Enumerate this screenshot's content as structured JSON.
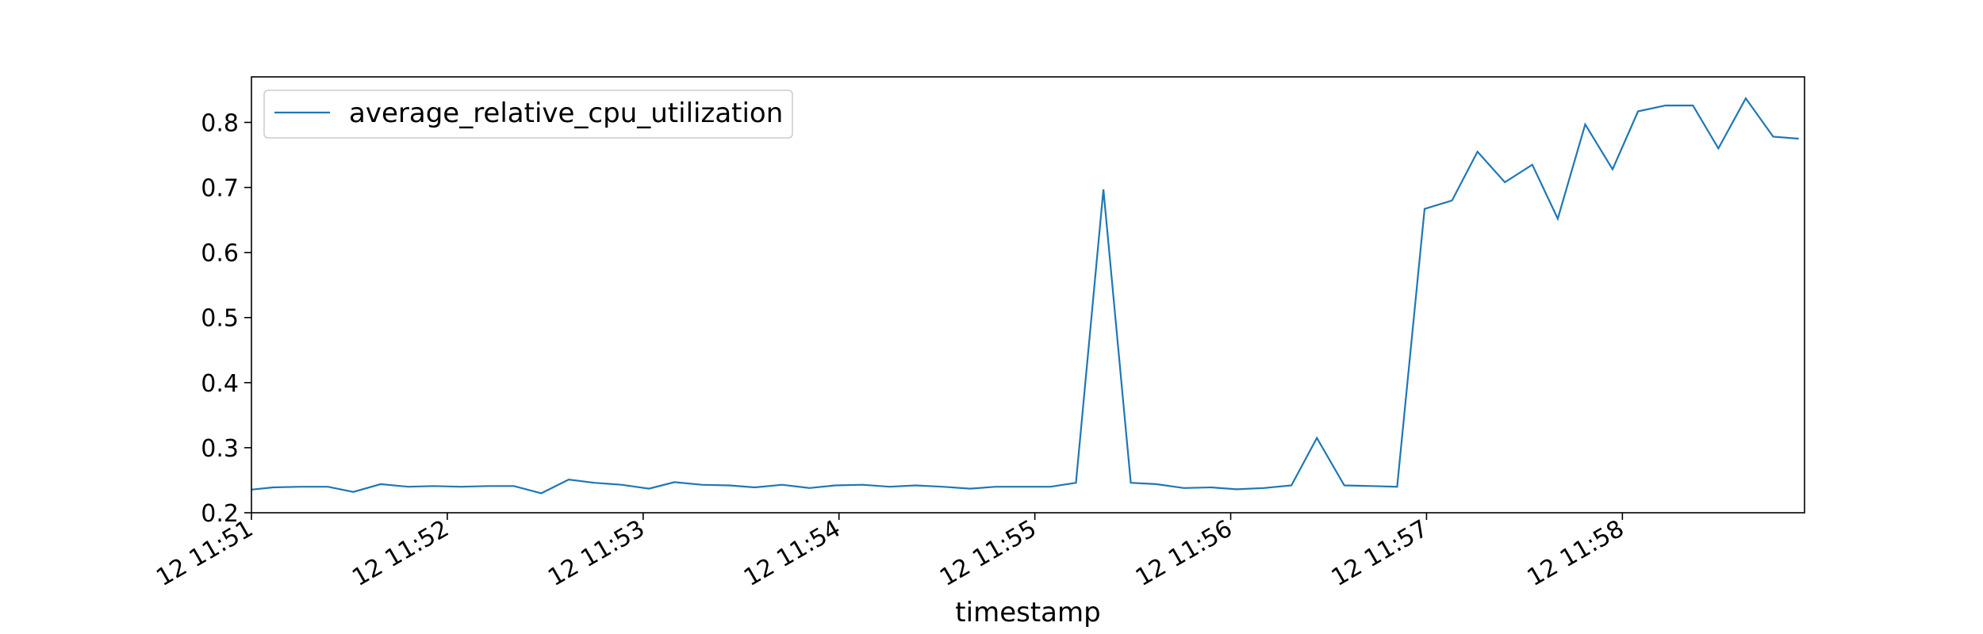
{
  "chart_data": {
    "type": "line",
    "title": "",
    "xlabel": "timestamp",
    "ylabel": "",
    "ylim": [
      0.2,
      0.87
    ],
    "xlim_minutes": [
      0,
      7.93
    ],
    "grid": false,
    "legend": {
      "position": "top-left",
      "entries": [
        "average_relative_cpu_utilization"
      ]
    },
    "colors": {
      "series": "#1f77b4",
      "axes": "#000000",
      "legend_border": "#cccccc"
    },
    "x_ticks": [
      {
        "label": "12 11:51",
        "minute": 0
      },
      {
        "label": "12 11:52",
        "minute": 1
      },
      {
        "label": "12 11:53",
        "minute": 2
      },
      {
        "label": "12 11:54",
        "minute": 3
      },
      {
        "label": "12 11:55",
        "minute": 4
      },
      {
        "label": "12 11:56",
        "minute": 5
      },
      {
        "label": "12 11:57",
        "minute": 6
      },
      {
        "label": "12 11:58",
        "minute": 7
      }
    ],
    "y_ticks": [
      {
        "label": "0.2",
        "value": 0.2
      },
      {
        "label": "0.3",
        "value": 0.3
      },
      {
        "label": "0.4",
        "value": 0.4
      },
      {
        "label": "0.5",
        "value": 0.5
      },
      {
        "label": "0.6",
        "value": 0.6
      },
      {
        "label": "0.7",
        "value": 0.7
      },
      {
        "label": "0.8",
        "value": 0.8
      }
    ],
    "series": [
      {
        "name": "average_relative_cpu_utilization",
        "x_minutes": [
          -0.02,
          0.11,
          0.25,
          0.39,
          0.52,
          0.66,
          0.8,
          0.93,
          1.07,
          1.21,
          1.34,
          1.48,
          1.62,
          1.75,
          1.89,
          2.03,
          2.16,
          2.3,
          2.44,
          2.57,
          2.71,
          2.85,
          2.98,
          3.12,
          3.26,
          3.39,
          3.53,
          3.67,
          3.8,
          3.94,
          4.08,
          4.21,
          4.35,
          4.49,
          4.62,
          4.76,
          4.9,
          5.03,
          5.17,
          5.31,
          5.44,
          5.58,
          5.72,
          5.85,
          5.99,
          6.13,
          6.26,
          6.4,
          6.54,
          6.67,
          6.81,
          6.95,
          7.08,
          7.22,
          7.36,
          7.49,
          7.63,
          7.77,
          7.9
        ],
        "y": [
          0.235,
          0.239,
          0.24,
          0.24,
          0.232,
          0.244,
          0.24,
          0.241,
          0.24,
          0.241,
          0.241,
          0.23,
          0.251,
          0.246,
          0.243,
          0.237,
          0.247,
          0.243,
          0.242,
          0.239,
          0.243,
          0.238,
          0.242,
          0.243,
          0.24,
          0.242,
          0.24,
          0.237,
          0.24,
          0.24,
          0.24,
          0.246,
          0.697,
          0.246,
          0.244,
          0.238,
          0.239,
          0.236,
          0.238,
          0.242,
          0.315,
          0.242,
          0.241,
          0.24,
          0.667,
          0.68,
          0.755,
          0.708,
          0.735,
          0.652,
          0.797,
          0.728,
          0.817,
          0.826,
          0.826,
          0.76,
          0.837,
          0.778,
          0.775
        ]
      }
    ]
  }
}
